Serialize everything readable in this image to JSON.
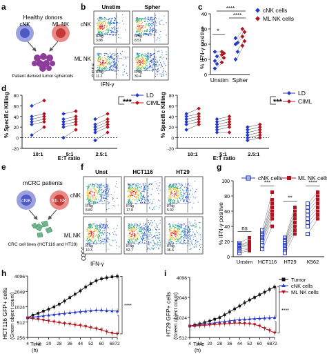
{
  "figure": {
    "panel_letters": [
      "a",
      "b",
      "c",
      "d",
      "e",
      "f",
      "g",
      "h",
      "i"
    ]
  },
  "panel_a": {
    "donor_label": "Healthy donors",
    "cnk": "cNK",
    "mlnk": "ML NK",
    "target_label": "Patient derived tumor spheroids"
  },
  "panel_b": {
    "col_labels": [
      "Unstim",
      "Spher"
    ],
    "row_labels": [
      "cNK",
      "ML NK"
    ],
    "xlabel": "IFN-γ",
    "ylabel": "CD56",
    "gate_label": "IFNg",
    "values": [
      [
        "3.88",
        "8.51"
      ],
      [
        "11.2",
        "30.4"
      ]
    ],
    "colors": {
      "dense": "#e3342f",
      "mid": "#f2c12e",
      "low": "#36b37e",
      "sparse": "#2f64d8"
    }
  },
  "panel_c": {
    "ylabel": "% IFN-γ positive",
    "categories": [
      "Unstim",
      "Spher"
    ],
    "legend": [
      "cNK cells",
      "ML NK cells"
    ],
    "stars_unstim": "*",
    "stars_top": "****",
    "stars_mid": "****",
    "yticks": [
      "0",
      "10",
      "20",
      "30",
      "40"
    ]
  },
  "panel_d": {
    "ylabel": "% Specific Killing",
    "xlabel": "E:T ratio",
    "categories": [
      "10:1",
      "5:1",
      "2.5:1"
    ],
    "legend": [
      "LD",
      "CIML"
    ],
    "stars": "***",
    "yticks": [
      "-20",
      "0",
      "20",
      "40",
      "60",
      "80"
    ]
  },
  "panel_e": {
    "donor_label": "mCRC patients",
    "cnk": "cNK",
    "mlnk": "ML NK",
    "target_label": "CRC cell lines (HCT116 and HT29)"
  },
  "panel_f": {
    "col_labels": [
      "Unst",
      "HCT116",
      "HT29"
    ],
    "row_labels": [
      "cNK",
      "ML NK"
    ],
    "xlabel": "IFN-γ",
    "ylabel": "CD56",
    "gate_label": "IFNg",
    "values": [
      [
        "8.89",
        "17.8",
        "5.92"
      ],
      [
        "10.3",
        "52.7",
        "36.3"
      ]
    ]
  },
  "panel_g": {
    "ylabel": "% IFN-γ positive",
    "categories": [
      "Unstim",
      "HCT116",
      "HT29",
      "K562"
    ],
    "legend": [
      "cNK cells",
      "ML NK cells"
    ],
    "stars": [
      "ns",
      "***",
      "**",
      "****"
    ],
    "yticks": [
      "0",
      "20",
      "40",
      "60",
      "80",
      "100"
    ]
  },
  "panel_h": {
    "ylabel": "HCT116 GFP+ cells",
    "ylabel2": "(Green object count)",
    "xlabel": "Time",
    "xunit": "(h)",
    "yticks": [
      "256",
      "512",
      "1024",
      "2048",
      "4096"
    ],
    "xticks": [
      "4",
      "12",
      "20",
      "28",
      "36",
      "44",
      "52",
      "60",
      "68",
      "72"
    ],
    "stars": "****"
  },
  "panel_i": {
    "ylabel": "HT29 GFP+ cells",
    "ylabel2": "(Green object count)",
    "xlabel": "Time",
    "xunit": "(h)",
    "yticks": [
      "512",
      "1024",
      "2048",
      "4096"
    ],
    "xticks": [
      "4",
      "12",
      "20",
      "28",
      "36",
      "44",
      "52",
      "60",
      "68",
      "72"
    ],
    "legend": [
      "Tumor",
      "cNK cells",
      "ML NK cells"
    ],
    "stars": "****"
  },
  "colors": {
    "cnk": "#2438c9",
    "mlnk": "#b3111c",
    "tumor": "#111111"
  },
  "chart_data": [
    {
      "panel": "c",
      "type": "scatter",
      "ylabel": "% IFN-γ positive",
      "categories": [
        "Unstim",
        "Spher"
      ],
      "ylim": [
        0,
        40
      ],
      "series": [
        {
          "name": "cNK cells",
          "values": [
            [
              4,
              7,
              9,
              12,
              15
            ],
            [
              10,
              15,
              20,
              21,
              24
            ]
          ]
        },
        {
          "name": "ML NK cells",
          "values": [
            [
              8,
              11,
              13,
              14,
              15
            ],
            [
              19,
              22,
              25,
              28,
              30
            ]
          ]
        }
      ]
    },
    {
      "panel": "d-left",
      "type": "line",
      "ylabel": "% Specific Killing",
      "xlabel": "E:T ratio",
      "categories": [
        "10:1",
        "5:1",
        "2.5:1"
      ],
      "ylim": [
        -20,
        80
      ],
      "series": [
        {
          "name": "LD",
          "values": [
            [
              5,
              25,
              30,
              35,
              40,
              60
            ],
            [
              0,
              20,
              25,
              30,
              35,
              45
            ],
            [
              -5,
              10,
              15,
              20,
              25,
              35
            ]
          ]
        },
        {
          "name": "CIML",
          "values": [
            [
              20,
              30,
              35,
              40,
              45,
              70
            ],
            [
              15,
              25,
              30,
              35,
              40,
              50
            ],
            [
              10,
              20,
              25,
              30,
              35,
              45
            ]
          ]
        }
      ]
    },
    {
      "panel": "d-right",
      "type": "line",
      "ylabel": "% Specific Killing",
      "xlabel": "E:T ratio",
      "categories": [
        "10:1",
        "5:1",
        "2.5:1"
      ],
      "ylim": [
        -20,
        80
      ],
      "series": [
        {
          "name": "LD",
          "values": [
            [
              15,
              25,
              30,
              35,
              40,
              45
            ],
            [
              10,
              15,
              20,
              25,
              30,
              35
            ],
            [
              -5,
              0,
              5,
              10,
              15,
              20
            ]
          ]
        },
        {
          "name": "CIML",
          "values": [
            [
              25,
              30,
              35,
              40,
              45,
              55
            ],
            [
              10,
              20,
              25,
              30,
              35,
              40
            ],
            [
              0,
              5,
              10,
              15,
              20,
              25
            ]
          ]
        }
      ]
    },
    {
      "panel": "g",
      "type": "scatter",
      "ylabel": "% IFN-γ positive",
      "categories": [
        "Unstim",
        "HCT116",
        "HT29",
        "K562"
      ],
      "ylim": [
        0,
        100
      ],
      "series": [
        {
          "name": "cNK cells",
          "values": [
            [
              5,
              8,
              10,
              12,
              14,
              15,
              16,
              18
            ],
            [
              10,
              15,
              20,
              22,
              25,
              28,
              30,
              35
            ],
            [
              5,
              10,
              12,
              15,
              18,
              20,
              22,
              25
            ],
            [
              30,
              40,
              45,
              50,
              55,
              60,
              65,
              70
            ]
          ]
        },
        {
          "name": "ML NK cells",
          "values": [
            [
              8,
              10,
              12,
              15,
              16,
              18,
              20,
              25
            ],
            [
              40,
              50,
              55,
              60,
              65,
              70,
              75,
              85
            ],
            [
              30,
              35,
              40,
              45,
              50,
              55,
              60,
              65
            ],
            [
              50,
              55,
              60,
              65,
              70,
              75,
              80,
              85
            ]
          ]
        }
      ]
    },
    {
      "panel": "h",
      "type": "line",
      "ylabel": "HCT116 GFP+ cells",
      "xlabel": "Time",
      "x": [
        4,
        8,
        12,
        16,
        20,
        24,
        28,
        32,
        36,
        40,
        44,
        48,
        52,
        56,
        60,
        64,
        68,
        72
      ],
      "ylim": [
        256,
        4096
      ],
      "yscale": "log2",
      "series": [
        {
          "name": "Tumor",
          "values": [
            620,
            700,
            760,
            840,
            920,
            1020,
            1150,
            1320,
            1550,
            1800,
            2100,
            2500,
            2900,
            3300,
            3600,
            3800,
            3950,
            4050
          ]
        },
        {
          "name": "cNK cells",
          "values": [
            620,
            640,
            660,
            680,
            700,
            720,
            740,
            760,
            780,
            800,
            820,
            840,
            860,
            880,
            880,
            860,
            850,
            840
          ]
        },
        {
          "name": "ML NK cells",
          "values": [
            620,
            600,
            580,
            560,
            540,
            520,
            500,
            480,
            470,
            450,
            440,
            420,
            400,
            380,
            360,
            330,
            310,
            300
          ]
        }
      ]
    },
    {
      "panel": "i",
      "type": "line",
      "ylabel": "HT29 GFP+ cells",
      "xlabel": "Time",
      "x": [
        4,
        8,
        12,
        16,
        20,
        24,
        28,
        32,
        36,
        40,
        44,
        48,
        52,
        56,
        60,
        64,
        68,
        72
      ],
      "ylim": [
        512,
        4096
      ],
      "yscale": "log2",
      "series": [
        {
          "name": "Tumor",
          "values": [
            760,
            790,
            820,
            860,
            900,
            960,
            1020,
            1120,
            1240,
            1380,
            1520,
            1700,
            1880,
            2050,
            2250,
            2450,
            2700,
            2950
          ]
        },
        {
          "name": "cNK cells",
          "values": [
            760,
            770,
            790,
            810,
            830,
            850,
            870,
            890,
            910,
            930,
            950,
            960,
            970,
            980,
            990,
            1000,
            1010,
            1020
          ]
        },
        {
          "name": "ML NK cells",
          "values": [
            760,
            760,
            770,
            780,
            790,
            800,
            810,
            820,
            830,
            840,
            840,
            830,
            820,
            800,
            760,
            700,
            650,
            600
          ]
        }
      ]
    }
  ]
}
